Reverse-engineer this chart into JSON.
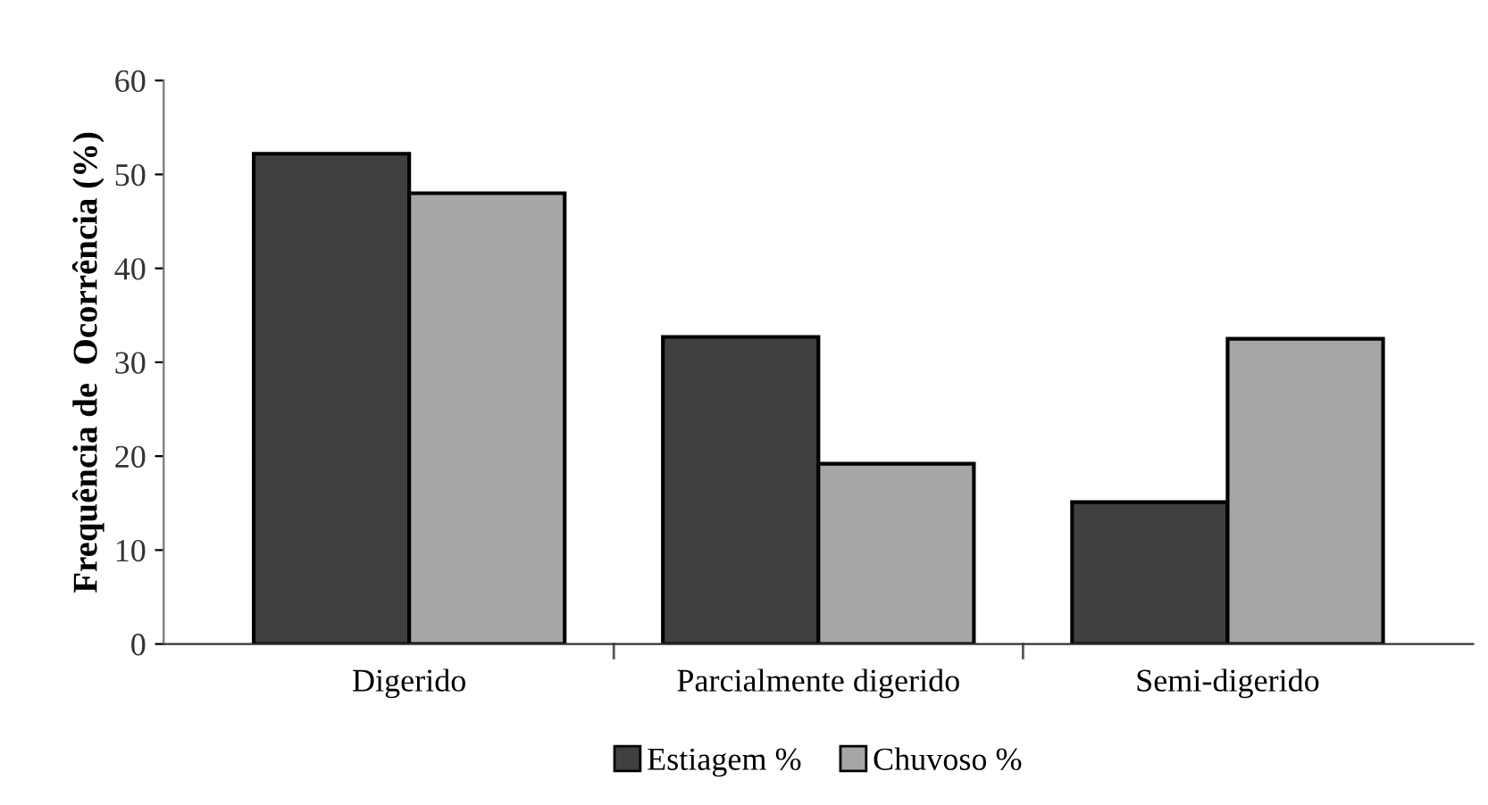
{
  "chart_data": {
    "type": "bar",
    "ylabel": "Frequência de  Ocorrência (%)",
    "categories": [
      "Digerido",
      "Parcialmente digerido",
      "Semi-digerido"
    ],
    "series": [
      {
        "name": "Estiagem %",
        "color": "#404040",
        "values": [
          52.2,
          32.7,
          15.1
        ]
      },
      {
        "name": "Chuvoso %",
        "color": "#a6a6a6",
        "values": [
          48.0,
          19.2,
          32.5
        ]
      }
    ],
    "ylim": [
      0,
      60
    ],
    "yticks": [
      0,
      10,
      20,
      30,
      40,
      50,
      60
    ],
    "grid": false,
    "legend": "bottom"
  }
}
